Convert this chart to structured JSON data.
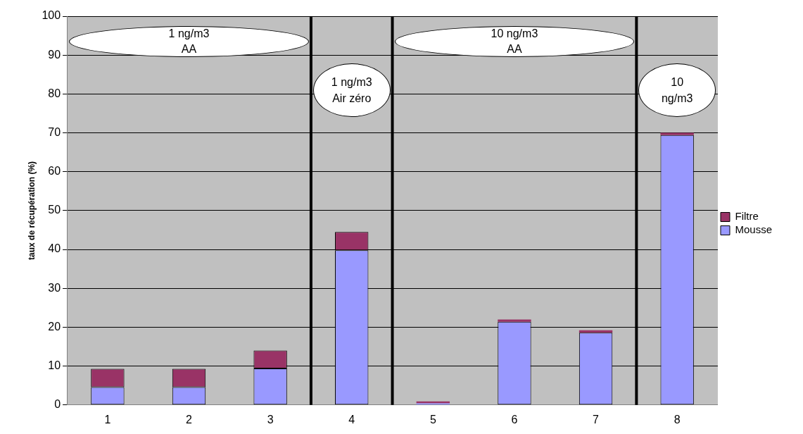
{
  "chart_data": {
    "type": "bar",
    "stacked": true,
    "ylabel": "taux de récupération (%)",
    "x": [
      1,
      2,
      3,
      4,
      5,
      6,
      7,
      8
    ],
    "xlim": [
      0.5,
      8.5
    ],
    "xticks": [
      1,
      2,
      3,
      4,
      5,
      6,
      7,
      8
    ],
    "ylim": [
      0,
      100
    ],
    "yticks": [
      0,
      10,
      20,
      30,
      40,
      50,
      60,
      70,
      80,
      90,
      100
    ],
    "grid": "y",
    "legend": "right",
    "series": [
      {
        "name": "Mousse",
        "color": "#9999ff",
        "values": [
          4.6,
          4.6,
          9.4,
          39.8,
          0.4,
          21.4,
          18.6,
          69.4
        ]
      },
      {
        "name": "Filtre",
        "color": "#993366",
        "values": [
          4.7,
          4.7,
          4.6,
          4.7,
          0.5,
          0.6,
          0.6,
          0.6
        ]
      }
    ],
    "ref_lines": [
      {
        "axis": "x",
        "value": 3.5,
        "color": "#000000"
      },
      {
        "axis": "x",
        "value": 4.5,
        "color": "#000000"
      },
      {
        "axis": "x",
        "value": 7.5,
        "color": "#000000"
      }
    ],
    "annotations": [
      "1 ng/m3\nAA",
      "1 ng/m3\nAir zéro",
      "10 ng/m3\nAA",
      "10\nng/m3"
    ]
  }
}
